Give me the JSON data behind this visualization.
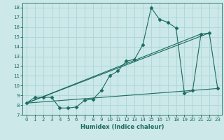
{
  "xlabel": "Humidex (Indice chaleur)",
  "bg_color": "#cce8e8",
  "line_color": "#1a6b60",
  "grid_color": "#b0d8d8",
  "xlim": [
    -0.5,
    23.5
  ],
  "ylim": [
    7,
    18.5
  ],
  "yticks": [
    7,
    8,
    9,
    10,
    11,
    12,
    13,
    14,
    15,
    16,
    17,
    18
  ],
  "xticks": [
    0,
    1,
    2,
    3,
    4,
    5,
    6,
    7,
    8,
    9,
    10,
    11,
    12,
    13,
    14,
    15,
    16,
    17,
    18,
    19,
    20,
    21,
    22,
    23
  ],
  "series": [
    {
      "x": [
        0,
        1,
        2,
        3,
        4,
        5,
        6,
        7,
        8,
        9,
        10,
        11,
        12,
        13,
        14,
        15,
        16,
        17,
        18,
        19,
        20,
        21,
        22,
        23
      ],
      "y": [
        8.2,
        8.8,
        8.8,
        8.8,
        7.7,
        7.7,
        7.8,
        8.5,
        8.6,
        9.5,
        11.0,
        11.5,
        12.5,
        12.7,
        14.2,
        18.0,
        16.8,
        16.5,
        15.9,
        9.2,
        9.5,
        15.3,
        15.4,
        9.7
      ],
      "marker": "D",
      "markersize": 2.5
    },
    {
      "x": [
        0,
        22
      ],
      "y": [
        8.2,
        15.4
      ],
      "marker": null
    },
    {
      "x": [
        0,
        21
      ],
      "y": [
        8.2,
        15.3
      ],
      "marker": null
    },
    {
      "x": [
        0,
        23
      ],
      "y": [
        8.2,
        9.7
      ],
      "marker": null
    }
  ]
}
